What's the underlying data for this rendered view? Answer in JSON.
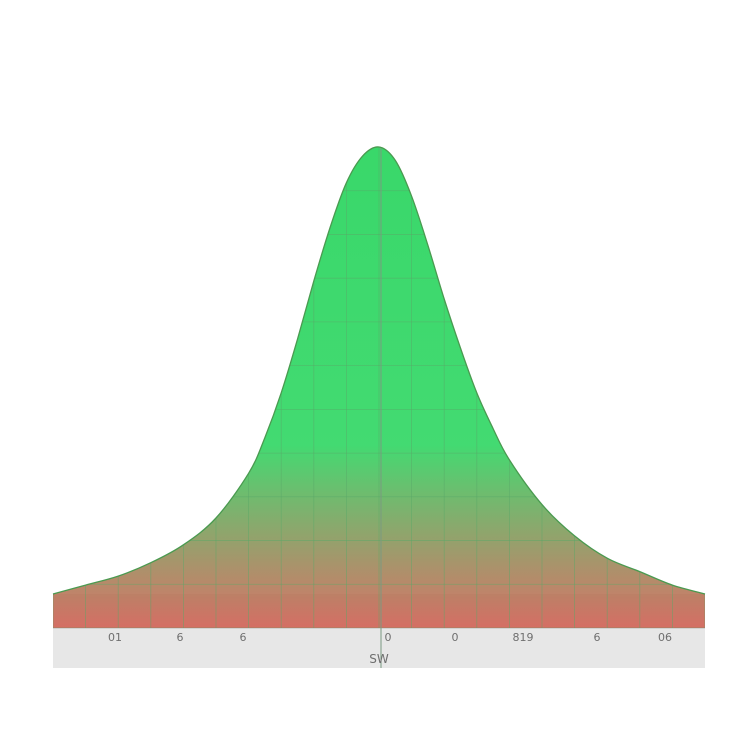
{
  "chart_data": {
    "type": "area",
    "title": "",
    "xlabel": "SW",
    "ylabel": "",
    "xlim": [
      -5,
      5
    ],
    "ylim": [
      0,
      1
    ],
    "grid": true,
    "x": [
      -5,
      -4.5,
      -4,
      -3.5,
      -3,
      -2.5,
      -2,
      -1.75,
      -1.5,
      -1.25,
      -1,
      -0.75,
      -0.5,
      -0.25,
      0,
      0.25,
      0.5,
      0.75,
      1,
      1.25,
      1.5,
      1.75,
      2,
      2.5,
      3,
      3.5,
      4,
      4.5,
      5
    ],
    "series": [
      {
        "values": [
          0.0,
          0.02,
          0.04,
          0.07,
          0.11,
          0.17,
          0.27,
          0.35,
          0.45,
          0.57,
          0.7,
          0.82,
          0.92,
          0.98,
          1.0,
          0.97,
          0.89,
          0.78,
          0.66,
          0.55,
          0.45,
          0.37,
          0.3,
          0.2,
          0.13,
          0.08,
          0.05,
          0.02,
          0.0
        ]
      }
    ],
    "x_tick_labels": [
      "01",
      "6",
      "6",
      "0",
      "0",
      "819",
      "6",
      "06"
    ],
    "colors": {
      "peak": "#39d86a",
      "tail": "#d25a4e",
      "line": "#4a9a50",
      "grid": "#5aa868",
      "base": "#e7e7e7"
    }
  }
}
